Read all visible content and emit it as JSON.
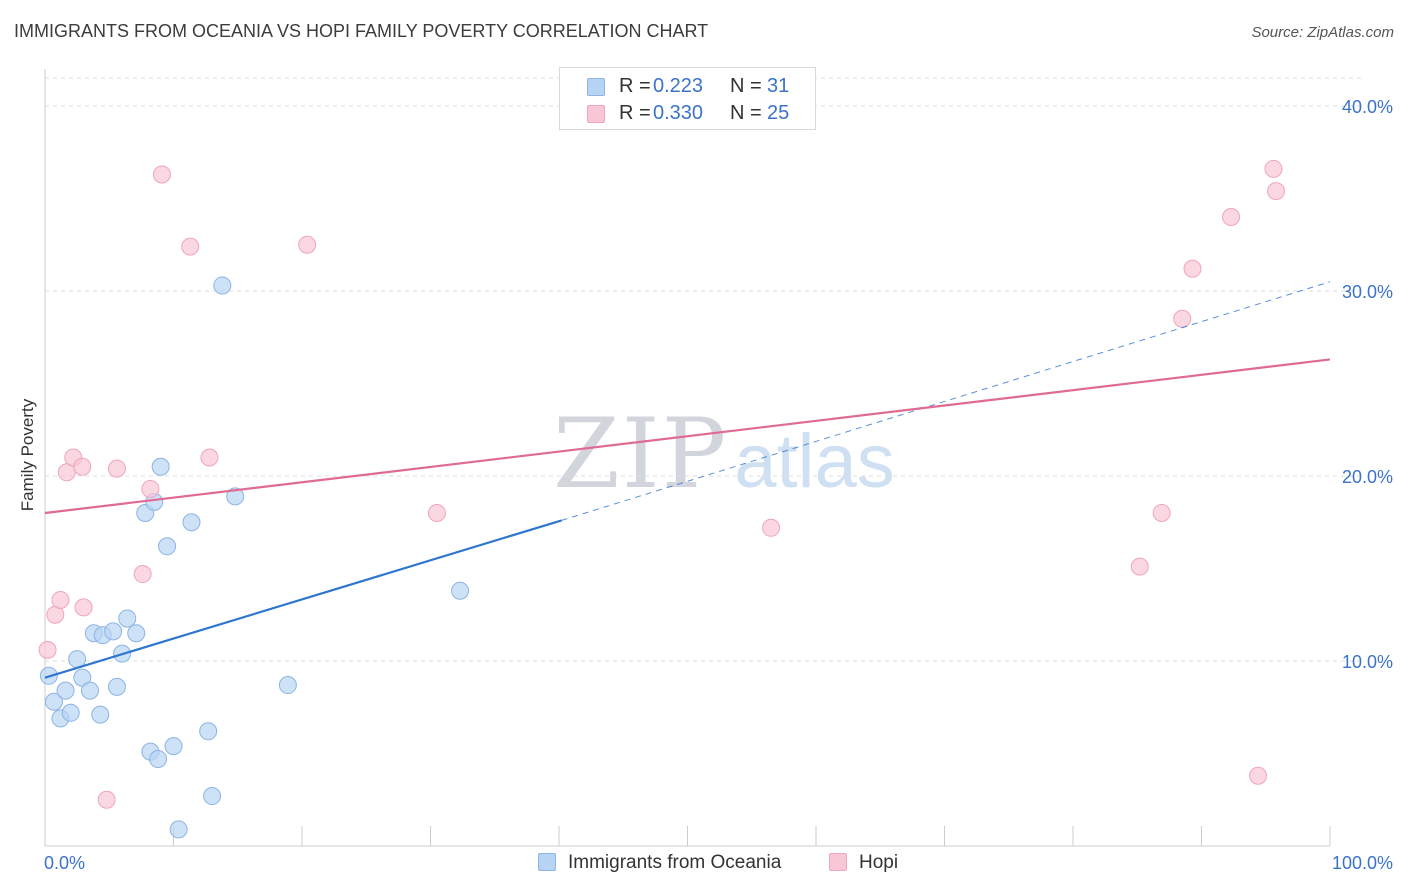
{
  "title": "IMMIGRANTS FROM OCEANIA VS HOPI FAMILY POVERTY CORRELATION CHART",
  "source": "Source: ZipAtlas.com",
  "watermark": {
    "part1": "ZIP",
    "part2": "atlas"
  },
  "legend_top": {
    "rows": [
      {
        "r_label": "R =",
        "r_value": "0.223",
        "n_label": "N =",
        "n_value": "31"
      },
      {
        "r_label": "R =",
        "r_value": "0.330",
        "n_label": "N =",
        "n_value": "25"
      }
    ]
  },
  "legend_bottom": {
    "series1": "Immigrants from Oceania",
    "series2": "Hopi"
  },
  "chart_data": {
    "type": "scatter",
    "title": "IMMIGRANTS FROM OCEANIA VS HOPI FAMILY POVERTY CORRELATION CHART",
    "xlabel": "",
    "ylabel": "Family Poverty",
    "xlim": [
      0,
      100
    ],
    "ylim": [
      0,
      42
    ],
    "x_tick_labels": [
      "0.0%",
      "100.0%"
    ],
    "y_ticks": [
      10,
      20,
      30,
      40
    ],
    "y_tick_labels": [
      "10.0%",
      "20.0%",
      "30.0%",
      "40.0%"
    ],
    "grid": true,
    "colors": {
      "series1_fill": "#b8d4f4",
      "series1_stroke": "#8db4e4",
      "series1_line": "#2e76d0",
      "series2_fill": "#f9c6d6",
      "series2_stroke": "#eea5bd",
      "series2_line": "#e06a92",
      "tick_text": "#3b73c8",
      "grid": "#dedede"
    },
    "series": [
      {
        "name": "Immigrants from Oceania",
        "points": [
          [
            0.3,
            9.2
          ],
          [
            0.7,
            7.8
          ],
          [
            1.2,
            6.9
          ],
          [
            1.6,
            8.4
          ],
          [
            2.0,
            7.2
          ],
          [
            2.5,
            10.1
          ],
          [
            2.9,
            9.1
          ],
          [
            3.5,
            8.4
          ],
          [
            3.8,
            11.5
          ],
          [
            4.3,
            7.1
          ],
          [
            4.5,
            11.4
          ],
          [
            5.3,
            11.6
          ],
          [
            5.6,
            8.6
          ],
          [
            6.0,
            10.4
          ],
          [
            6.4,
            12.3
          ],
          [
            7.1,
            11.5
          ],
          [
            7.8,
            18.0
          ],
          [
            8.2,
            5.1
          ],
          [
            8.5,
            18.6
          ],
          [
            8.8,
            4.7
          ],
          [
            9.0,
            20.5
          ],
          [
            9.5,
            16.2
          ],
          [
            10.0,
            5.4
          ],
          [
            10.4,
            0.9
          ],
          [
            11.4,
            17.5
          ],
          [
            12.7,
            6.2
          ],
          [
            13.0,
            2.7
          ],
          [
            13.8,
            30.3
          ],
          [
            14.8,
            18.9
          ],
          [
            18.9,
            8.7
          ],
          [
            32.3,
            13.8
          ]
        ],
        "trend": {
          "x0": 0,
          "y0": 9.1,
          "x1": 40.2,
          "y1": 17.6,
          "dash_x1": 100,
          "dash_y1": 30.5
        }
      },
      {
        "name": "Hopi",
        "points": [
          [
            0.2,
            10.6
          ],
          [
            0.8,
            12.5
          ],
          [
            1.2,
            13.3
          ],
          [
            1.7,
            20.2
          ],
          [
            2.2,
            21.0
          ],
          [
            2.9,
            20.5
          ],
          [
            3.0,
            12.9
          ],
          [
            4.8,
            2.5
          ],
          [
            5.6,
            20.4
          ],
          [
            7.6,
            14.7
          ],
          [
            8.2,
            19.3
          ],
          [
            9.1,
            36.3
          ],
          [
            11.3,
            32.4
          ],
          [
            12.8,
            21.0
          ],
          [
            20.4,
            32.5
          ],
          [
            30.5,
            18.0
          ],
          [
            56.5,
            17.2
          ],
          [
            85.2,
            15.1
          ],
          [
            86.9,
            18.0
          ],
          [
            88.5,
            28.5
          ],
          [
            89.3,
            31.2
          ],
          [
            92.3,
            34.0
          ],
          [
            94.4,
            3.8
          ],
          [
            95.6,
            36.6
          ],
          [
            95.8,
            35.4
          ]
        ],
        "trend": {
          "x0": 0,
          "y0": 18.0,
          "x1": 100,
          "y1": 26.3
        }
      }
    ]
  }
}
